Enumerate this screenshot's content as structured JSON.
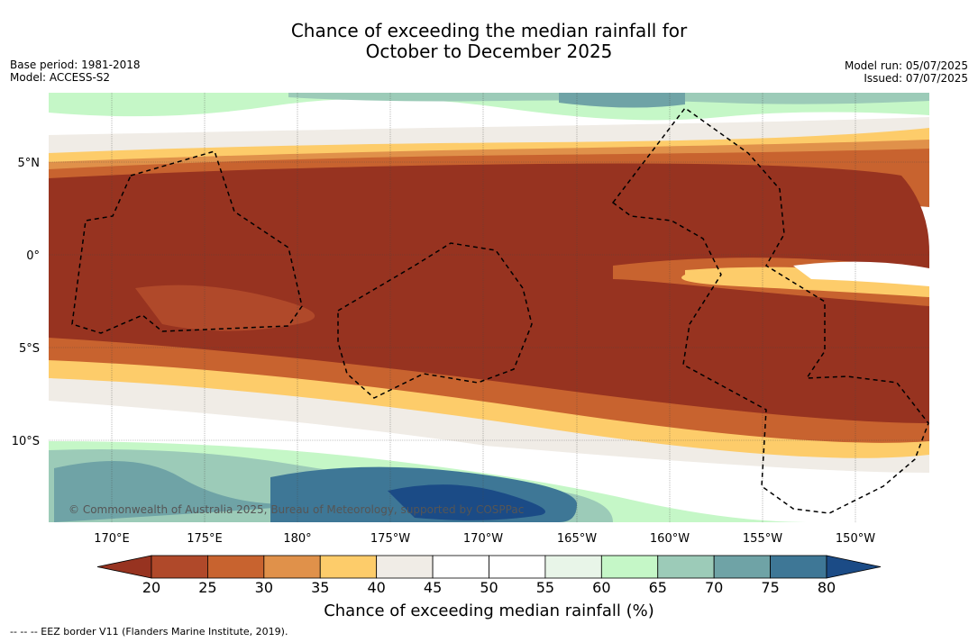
{
  "title_line1": "Chance of exceeding the median rainfall for",
  "title_line2": "October to December 2025",
  "meta_left": [
    "Base period: 1981-2018",
    "Model: ACCESS-S2"
  ],
  "meta_right": [
    "Model run: 05/07/2025",
    "Issued: 07/07/2025"
  ],
  "map": {
    "lat_labels": [
      "5°N",
      "0°",
      "5°S",
      "10°S"
    ],
    "lon_labels": [
      "170°E",
      "175°E",
      "180°",
      "175°W",
      "170°W",
      "165°W",
      "160°W",
      "155°W",
      "150°W"
    ],
    "copyright": "© Commonwealth of Australia 2025, Bureau of Meteorology, supported by COSPPac"
  },
  "colorbar": {
    "ticks": [
      "20",
      "25",
      "30",
      "35",
      "40",
      "45",
      "50",
      "55",
      "60",
      "65",
      "70",
      "75",
      "80"
    ],
    "colors": [
      "#973320",
      "#b0492a",
      "#c8632f",
      "#e0914a",
      "#fdcc6a",
      "#f0ece6",
      "#ffffff",
      "#ffffff",
      "#e8f5e8",
      "#c5f7c7",
      "#9ccbb8",
      "#6fa3a6",
      "#3e7796"
    ],
    "under_color": "#973320",
    "over_color": "#1b4b86",
    "label": "Chance of exceeding median rainfall (%)"
  },
  "footnote": "--  --  -- EEZ border V11 (Flanders Marine Institute, 2019)."
}
